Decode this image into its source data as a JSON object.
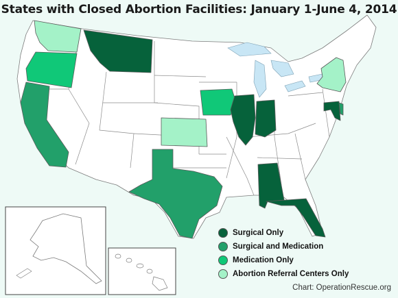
{
  "title": "States with Closed Abortion Facilities:  January 1-June 4, 2014",
  "credit": "Chart: OperationRescue.org",
  "colors": {
    "background": "#eefaf6",
    "land": "#ffffff",
    "border": "#7a7a7a",
    "water": "#c8e6f5",
    "surgical_only": "#06623b",
    "surgical_and_medication": "#22a06a",
    "medication_only": "#10c878",
    "referral_only": "#a4f2c8"
  },
  "legend": [
    {
      "label": "Surgical Only",
      "category": "surgical_only"
    },
    {
      "label": "Surgical and Medication",
      "category": "surgical_and_medication"
    },
    {
      "label": "Medication Only",
      "category": "medication_only"
    },
    {
      "label": "Abortion Referral Centers Only",
      "category": "referral_only"
    }
  ],
  "states_by_category": {
    "surgical_only": [
      "Montana",
      "Illinois",
      "Indiana",
      "Alabama",
      "Florida",
      "Maryland"
    ],
    "surgical_and_medication": [
      "California",
      "Texas",
      "Delaware"
    ],
    "medication_only": [
      "Oregon",
      "Iowa"
    ],
    "referral_only": [
      "Washington",
      "Kansas",
      "New York"
    ]
  },
  "insets": [
    "Alaska",
    "Hawaii"
  ]
}
